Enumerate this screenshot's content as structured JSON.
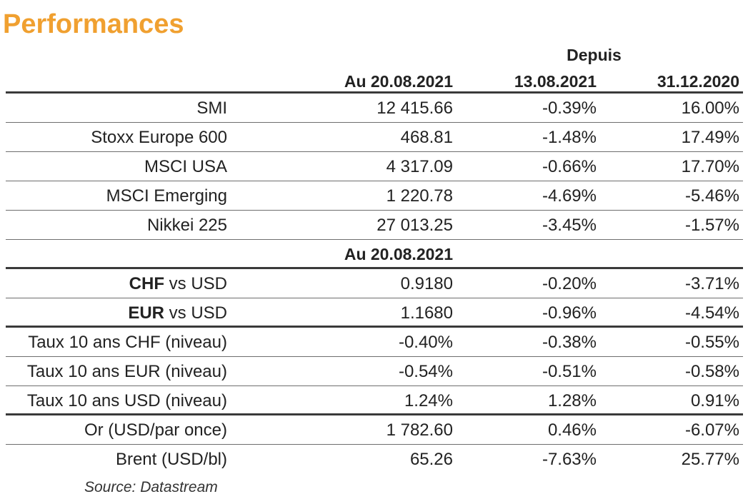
{
  "title": "Performances",
  "accent_color": "#F0A030",
  "header": {
    "group_label": "Depuis",
    "columns": [
      "Au 20.08.2021",
      "13.08.2021",
      "31.12.2020"
    ]
  },
  "indices": [
    {
      "name": "SMI",
      "level": "12 415.66",
      "since_week": "-0.39%",
      "since_year": "16.00%"
    },
    {
      "name": "Stoxx Europe 600",
      "level": "468.81",
      "since_week": "-1.48%",
      "since_year": "17.49%"
    },
    {
      "name": "MSCI USA",
      "level": "4 317.09",
      "since_week": "-0.66%",
      "since_year": "17.70%"
    },
    {
      "name": "MSCI Emerging",
      "level": "1 220.78",
      "since_week": "-4.69%",
      "since_year": "-5.46%"
    },
    {
      "name": "Nikkei 225",
      "level": "27 013.25",
      "since_week": "-3.45%",
      "since_year": "-1.57%"
    }
  ],
  "subheader": "Au 20.08.2021",
  "currencies": [
    {
      "bold": "CHF",
      "rest": " vs USD",
      "level": "0.9180",
      "since_week": "-0.20%",
      "since_year": "-3.71%"
    },
    {
      "bold": "EUR",
      "rest": " vs USD",
      "level": "1.1680",
      "since_week": "-0.96%",
      "since_year": "-4.54%"
    }
  ],
  "rates": [
    {
      "name": "Taux 10 ans CHF (niveau)",
      "level": "-0.40%",
      "since_week": "-0.38%",
      "since_year": "-0.55%"
    },
    {
      "name": "Taux 10 ans EUR (niveau)",
      "level": "-0.54%",
      "since_week": "-0.51%",
      "since_year": "-0.58%"
    },
    {
      "name": "Taux 10 ans USD (niveau)",
      "level": "1.24%",
      "since_week": "1.28%",
      "since_year": "0.91%"
    }
  ],
  "commodities": [
    {
      "name": "Or (USD/par once)",
      "level": "1 782.60",
      "since_week": "0.46%",
      "since_year": "-6.07%"
    },
    {
      "name": "Brent (USD/bl)",
      "level": "65.26",
      "since_week": "-7.63%",
      "since_year": "25.77%"
    }
  ],
  "source": "Source: Datastream"
}
